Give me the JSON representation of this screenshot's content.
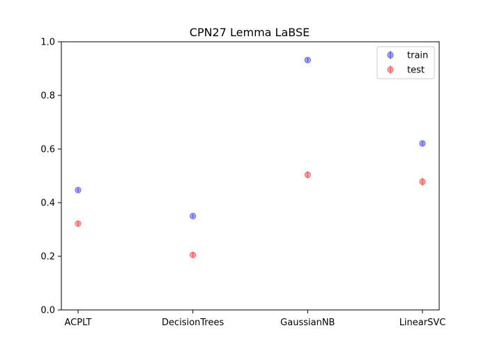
{
  "chart_data": {
    "type": "scatter",
    "title": "CPN27 Lemma LaBSE",
    "xlabel": "",
    "ylabel": "",
    "categories": [
      "ACPLT",
      "DecisionTrees",
      "GaussianNB",
      "LinearSVC"
    ],
    "ylim": [
      0.0,
      1.0
    ],
    "yticks": [
      "0.0",
      "0.2",
      "0.4",
      "0.6",
      "0.8",
      "1.0"
    ],
    "grid": false,
    "legend_position": "top-right",
    "series": [
      {
        "name": "train",
        "color": "#0000ff",
        "values": [
          0.447,
          0.35,
          0.932,
          0.621
        ],
        "errors": [
          0.007,
          0.007,
          0.008,
          0.008
        ]
      },
      {
        "name": "test",
        "color": "#ff0000",
        "values": [
          0.322,
          0.205,
          0.504,
          0.478
        ],
        "errors": [
          0.009,
          0.011,
          0.013,
          0.015
        ]
      }
    ]
  }
}
